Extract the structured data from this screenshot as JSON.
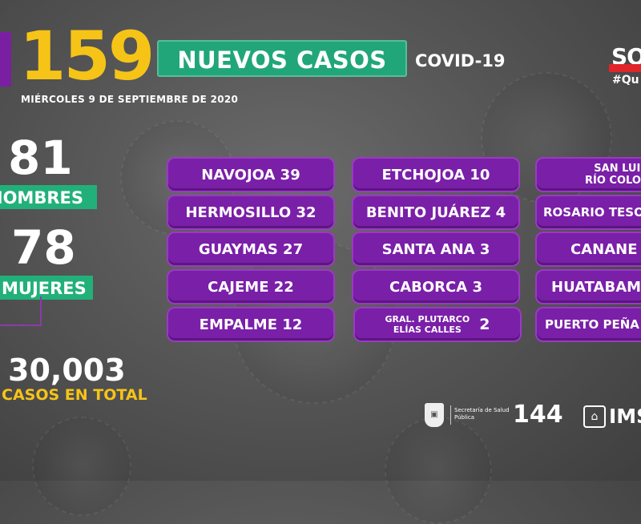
{
  "header": {
    "new_cases_number": "159",
    "new_cases_label": "NUEVOS CASOS",
    "subtitle": "COVID-19",
    "date": "MIÉRCOLES 9 DE SEPTIEMBRE DE 2020",
    "brand": "SO",
    "hashtag": "#Qu"
  },
  "stats": {
    "men_number": "81",
    "men_label": "HOMBRES",
    "women_number": "78",
    "women_label": "MUJERES",
    "total_number": "30,003",
    "total_label": "CASOS EN TOTAL"
  },
  "municipalities": {
    "col1": [
      "NAVOJOA 39",
      "HERMOSILLO 32",
      "GUAYMAS 27",
      "CAJEME 22",
      "EMPALME 12"
    ],
    "col2": [
      "ETCHOJOA 10",
      "BENITO JUÁREZ 4",
      "SANTA ANA 3",
      "CABORCA 3"
    ],
    "col2_last": {
      "line1": "GRAL. PLUTARCO",
      "line2": "ELÍAS CALLES",
      "count": "2"
    },
    "col3_first": {
      "line1": "SAN LUIS",
      "line2": "RÍO COLORA"
    },
    "col3": [
      "ROSARIO TESO",
      "CANANE",
      "HUATABAM",
      "PUERTO PEÑA"
    ]
  },
  "footer": {
    "secretaria": "Secretaría de Salud Pública",
    "hotline": "144",
    "imss": "IMS"
  },
  "colors": {
    "yellow": "#f6c417",
    "green": "#21a67a",
    "purple": "#7a1fa8"
  }
}
